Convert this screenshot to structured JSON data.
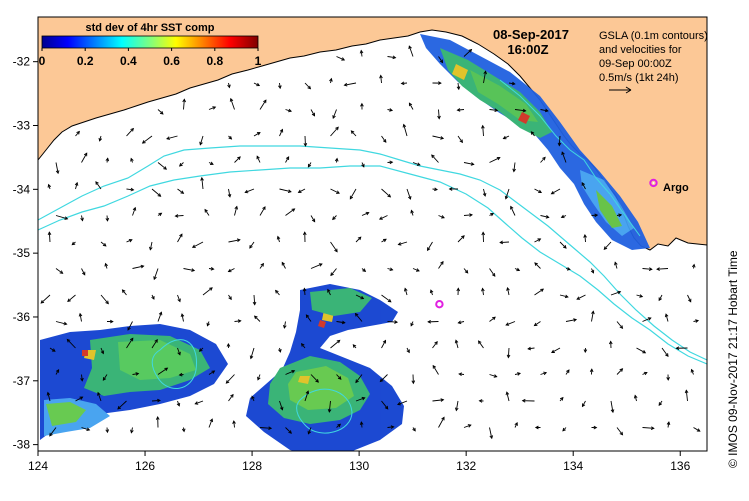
{
  "map": {
    "date_line": "08-Sep-2017",
    "time_line": "16:00Z",
    "legend_lines": [
      "GSLA (0.1m contours)",
      "and velocities for",
      "09-Sep 00:00Z",
      "0.5m/s (1kt 24h)"
    ],
    "colorbar": {
      "title": "std dev of 4hr SST comp",
      "ticks": [
        "0",
        "0.2",
        "0.4",
        "0.6",
        "0.8",
        "1"
      ]
    },
    "argo_label": "Argo",
    "credit": "© IMOS 09-Nov-2017 21:17 Hobart Time",
    "x_ticks": [
      "124",
      "126",
      "128",
      "130",
      "132",
      "134",
      "136"
    ],
    "y_ticks": [
      "-32",
      "-33",
      "-34",
      "-35",
      "-36",
      "-37",
      "-38"
    ],
    "x_range": [
      124,
      136.5
    ],
    "y_range": [
      -38.1,
      -31.3
    ],
    "argo_floats": [
      {
        "lon": 135.5,
        "lat": -33.9,
        "labeled": true
      },
      {
        "lon": 131.5,
        "lat": -35.8,
        "labeled": false
      }
    ],
    "colors": {
      "land": "#fcc896",
      "contour": "#40d8e0",
      "argo": "#e020e0",
      "coast": "#000000"
    }
  }
}
